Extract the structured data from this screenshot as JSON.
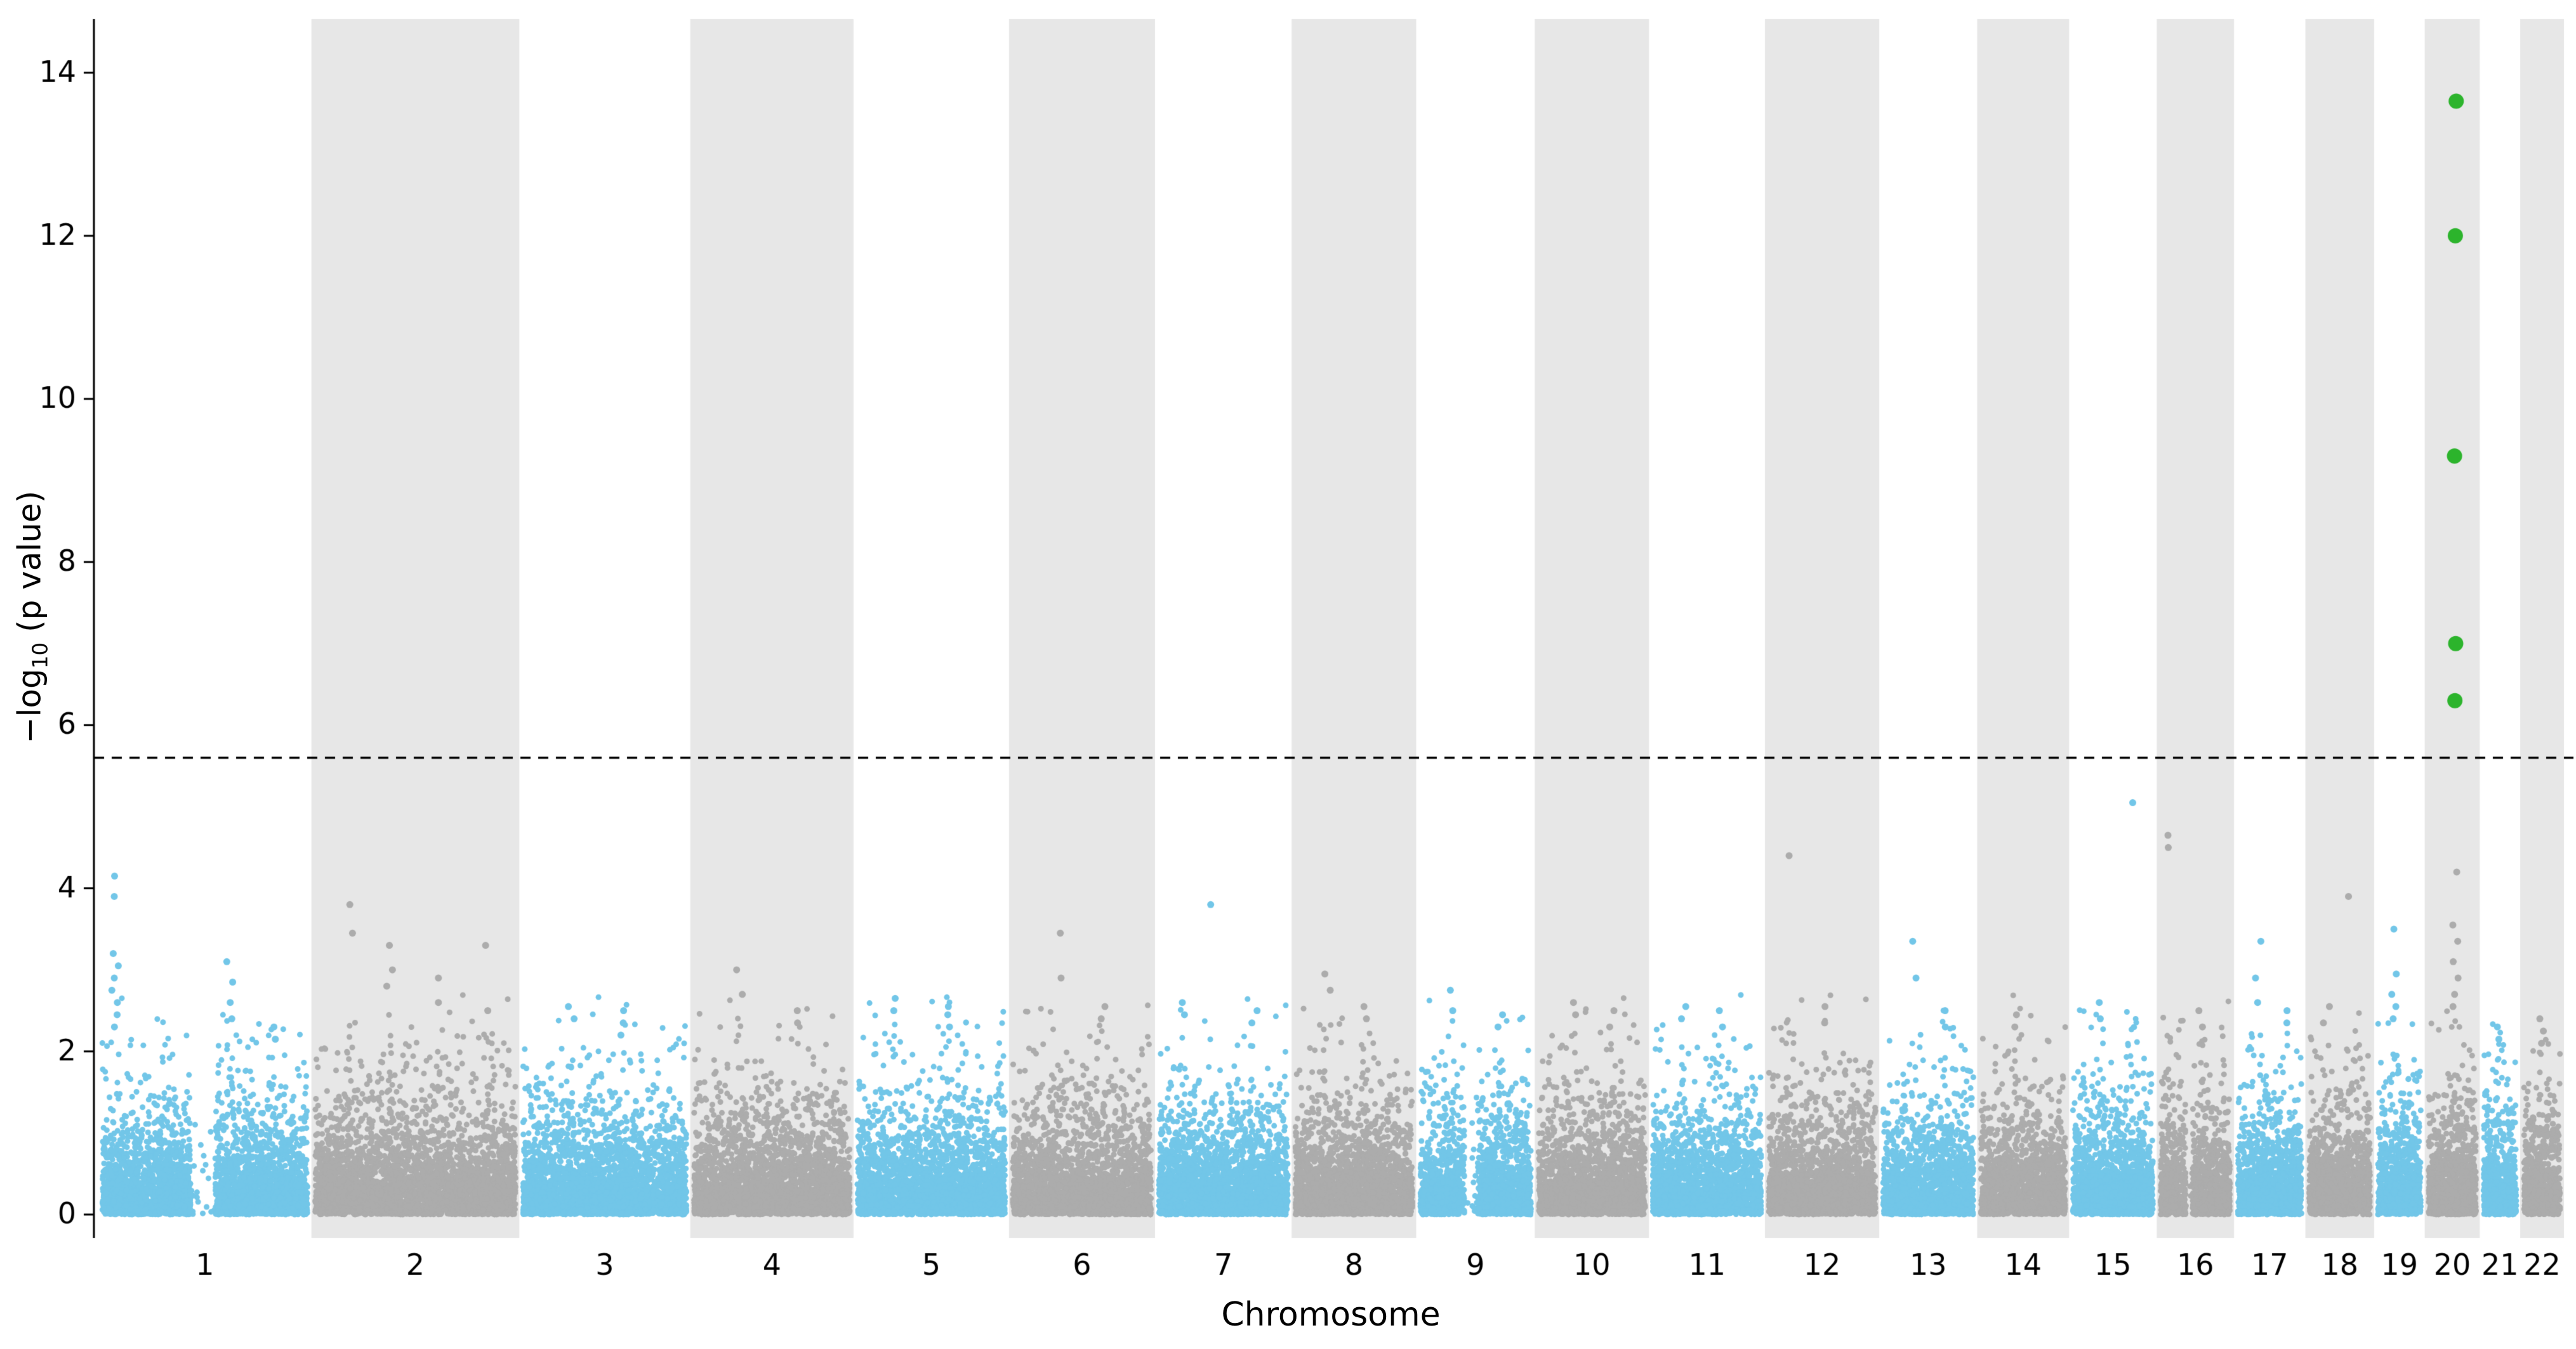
{
  "figure": {
    "xlabel": "Chromosome",
    "ylabel_prefix": "−log",
    "ylabel_sub": "10",
    "ylabel_suffix": " (p value)"
  },
  "chart_data": {
    "type": "scatter",
    "variant": "manhattan-plot",
    "title": "",
    "xlabel": "Chromosome",
    "ylabel": "-log10 (p value)",
    "ylim": [
      0,
      14.65
    ],
    "yticks": [
      0,
      2,
      4,
      6,
      8,
      10,
      12,
      14
    ],
    "xtick_labels": [
      "1",
      "2",
      "3",
      "4",
      "5",
      "6",
      "7",
      "8",
      "9",
      "10",
      "11",
      "12",
      "13",
      "14",
      "15",
      "16",
      "17",
      "18",
      "19",
      "20",
      "21",
      "22"
    ],
    "grid": false,
    "legend": null,
    "threshold_line": {
      "y": 5.6,
      "style": "dashed",
      "color": "#000000"
    },
    "colors": {
      "odd_chromosome": "#72c6e8",
      "even_chromosome": "#acacac",
      "significant": "#2cb42c",
      "band_shading": "#e7e7e7",
      "axis": "#000000"
    },
    "chromosomes": [
      {
        "label": "1",
        "size": 248,
        "shaded": false,
        "gap": [
          0.43,
          0.55
        ],
        "peaks": [
          {
            "x": 0.08,
            "ys": [
              4.15,
              3.9,
              3.2,
              3.05,
              2.9,
              2.75,
              2.6,
              2.45,
              2.3
            ]
          },
          {
            "x": 0.62,
            "ys": [
              3.1,
              2.85,
              2.6,
              2.4
            ]
          },
          {
            "x": 0.82,
            "ys": [
              2.3,
              2.15
            ]
          }
        ]
      },
      {
        "label": "2",
        "size": 242,
        "shaded": true,
        "peaks": [
          {
            "x": 0.18,
            "ys": [
              3.8,
              3.45
            ]
          },
          {
            "x": 0.38,
            "ys": [
              3.3,
              3.0,
              2.8
            ]
          },
          {
            "x": 0.62,
            "ys": [
              2.9,
              2.6
            ]
          },
          {
            "x": 0.85,
            "ys": [
              3.3,
              2.5
            ]
          }
        ]
      },
      {
        "label": "3",
        "size": 199,
        "shaded": false,
        "peaks": [
          {
            "x": 0.3,
            "ys": [
              2.55,
              2.4
            ]
          },
          {
            "x": 0.6,
            "ys": [
              2.5,
              2.35,
              2.2
            ]
          }
        ]
      },
      {
        "label": "4",
        "size": 190,
        "shaded": true,
        "peaks": [
          {
            "x": 0.3,
            "ys": [
              3.0,
              2.7
            ]
          },
          {
            "x": 0.65,
            "ys": [
              2.5,
              2.35
            ]
          }
        ]
      },
      {
        "label": "5",
        "size": 181,
        "shaded": false,
        "peaks": [
          {
            "x": 0.25,
            "ys": [
              2.65,
              2.5
            ]
          },
          {
            "x": 0.6,
            "ys": [
              2.55,
              2.45,
              2.3
            ]
          }
        ]
      },
      {
        "label": "6",
        "size": 170,
        "shaded": true,
        "peaks": [
          {
            "x": 0.35,
            "ys": [
              3.45,
              2.9
            ]
          },
          {
            "x": 0.65,
            "ys": [
              2.55,
              2.4
            ]
          }
        ]
      },
      {
        "label": "7",
        "size": 159,
        "shaded": false,
        "peaks": [
          {
            "x": 0.42,
            "ys": [
              3.8
            ]
          },
          {
            "x": 0.2,
            "ys": [
              2.6,
              2.45
            ]
          },
          {
            "x": 0.72,
            "ys": [
              2.5,
              2.35
            ]
          }
        ]
      },
      {
        "label": "8",
        "size": 145,
        "shaded": true,
        "peaks": [
          {
            "x": 0.28,
            "ys": [
              2.95,
              2.75
            ]
          },
          {
            "x": 0.6,
            "ys": [
              2.55,
              2.4
            ]
          }
        ]
      },
      {
        "label": "9",
        "size": 138,
        "shaded": false,
        "gap": [
          0.4,
          0.52
        ],
        "peaks": [
          {
            "x": 0.3,
            "ys": [
              2.75,
              2.5
            ]
          },
          {
            "x": 0.7,
            "ys": [
              2.45,
              2.3
            ]
          }
        ]
      },
      {
        "label": "10",
        "size": 133,
        "shaded": true,
        "peaks": [
          {
            "x": 0.35,
            "ys": [
              2.6,
              2.45
            ]
          },
          {
            "x": 0.68,
            "ys": [
              2.5,
              2.3
            ]
          }
        ]
      },
      {
        "label": "11",
        "size": 135,
        "shaded": false,
        "peaks": [
          {
            "x": 0.3,
            "ys": [
              2.55,
              2.4
            ]
          },
          {
            "x": 0.62,
            "ys": [
              2.5,
              2.3
            ]
          }
        ]
      },
      {
        "label": "12",
        "size": 133,
        "shaded": true,
        "peaks": [
          {
            "x": 0.22,
            "ys": [
              4.4
            ]
          },
          {
            "x": 0.55,
            "ys": [
              2.55,
              2.35
            ]
          }
        ]
      },
      {
        "label": "13",
        "size": 114,
        "shaded": false,
        "peaks": [
          {
            "x": 0.35,
            "ys": [
              3.35,
              2.9
            ]
          },
          {
            "x": 0.68,
            "ys": [
              2.5,
              2.3
            ]
          }
        ]
      },
      {
        "label": "14",
        "size": 107,
        "shaded": true,
        "peaks": [
          {
            "x": 0.45,
            "ys": [
              2.45,
              2.3
            ]
          }
        ]
      },
      {
        "label": "15",
        "size": 102,
        "shaded": false,
        "peaks": [
          {
            "x": 0.72,
            "ys": [
              5.05
            ]
          },
          {
            "x": 0.35,
            "ys": [
              2.6,
              2.4
            ]
          }
        ]
      },
      {
        "label": "16",
        "size": 90,
        "shaded": true,
        "gap": [
          0.36,
          0.46
        ],
        "peaks": [
          {
            "x": 0.12,
            "ys": [
              4.65,
              4.5
            ]
          },
          {
            "x": 0.55,
            "ys": [
              2.5,
              2.3
            ]
          }
        ]
      },
      {
        "label": "17",
        "size": 83,
        "shaded": false,
        "peaks": [
          {
            "x": 0.35,
            "ys": [
              3.35,
              2.9,
              2.6
            ]
          },
          {
            "x": 0.7,
            "ys": [
              2.5,
              2.35
            ]
          }
        ]
      },
      {
        "label": "18",
        "size": 80,
        "shaded": true,
        "peaks": [
          {
            "x": 0.68,
            "ys": [
              3.9
            ]
          },
          {
            "x": 0.3,
            "ys": [
              2.55,
              2.35
            ]
          }
        ]
      },
      {
        "label": "19",
        "size": 59,
        "shaded": false,
        "peaks": [
          {
            "x": 0.4,
            "ys": [
              3.5,
              2.95,
              2.7,
              2.55,
              2.4
            ]
          }
        ]
      },
      {
        "label": "20",
        "size": 64,
        "shaded": true,
        "peaks": [
          {
            "x": 0.55,
            "ys": [
              4.2,
              3.55,
              3.35,
              3.1,
              2.9,
              2.7,
              2.55
            ]
          }
        ]
      },
      {
        "label": "21",
        "size": 47,
        "shaded": false,
        "peaks": [
          {
            "x": 0.5,
            "ys": [
              2.3,
              2.15
            ]
          }
        ]
      },
      {
        "label": "22",
        "size": 51,
        "shaded": true,
        "peaks": [
          {
            "x": 0.5,
            "ys": [
              2.4,
              2.25,
              2.1
            ]
          }
        ]
      }
    ],
    "significant_points": [
      {
        "chromosome": "20",
        "x_frac": 0.55,
        "neglog10_p": 13.65
      },
      {
        "chromosome": "20",
        "x_frac": 0.55,
        "neglog10_p": 12.0
      },
      {
        "chromosome": "20",
        "x_frac": 0.55,
        "neglog10_p": 9.3
      },
      {
        "chromosome": "20",
        "x_frac": 0.55,
        "neglog10_p": 7.0
      },
      {
        "chromosome": "20",
        "x_frac": 0.55,
        "neglog10_p": 6.3
      }
    ]
  }
}
